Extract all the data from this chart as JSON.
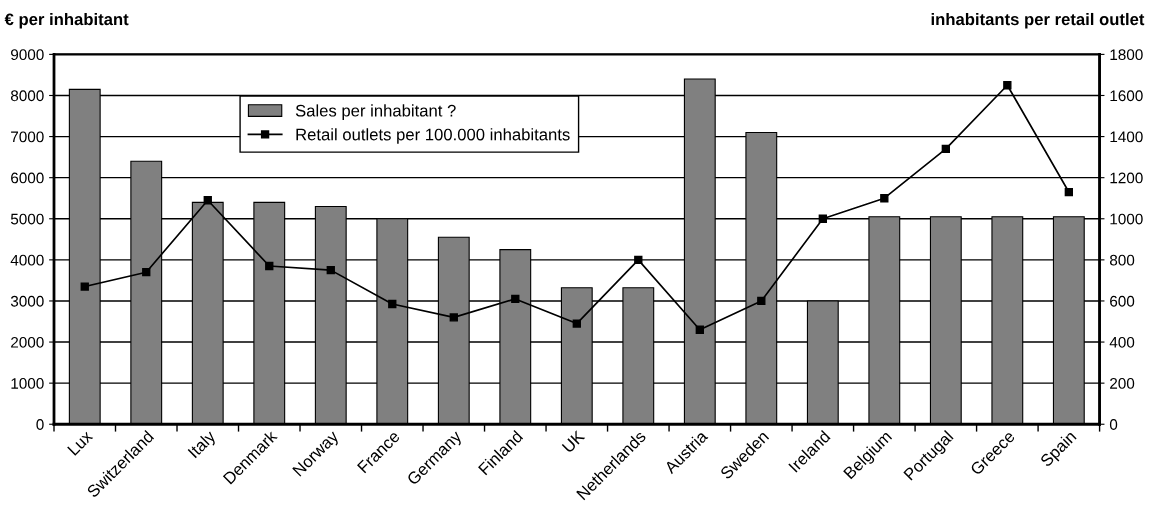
{
  "chart_data": {
    "type": "bar",
    "ylabel": "€ per inhabitant",
    "y2label": "inhabitants per retail outlet",
    "categories": [
      "Lux",
      "Switzerland",
      "Italy",
      "Denmark",
      "Norway",
      "France",
      "Germany",
      "Finland",
      "UK",
      "Netherlands",
      "Austria",
      "Sweden",
      "Ireland",
      "Belgium",
      "Portugal",
      "Greece",
      "Spain"
    ],
    "series": [
      {
        "name": "Sales per inhabitant ?",
        "color": "#808080",
        "values": [
          8150,
          6400,
          5400,
          5400,
          5300,
          5000,
          4550,
          4250,
          3320,
          3320,
          8400,
          7100,
          3000,
          5050,
          5050,
          5050,
          5050
        ]
      },
      {
        "name": "Retail outlets per 100.000 inhabitants",
        "type": "line",
        "axis": "y2",
        "color": "#000000",
        "marker": "square",
        "line_style": "solid",
        "values": [
          670,
          740,
          1090,
          770,
          750,
          585,
          520,
          610,
          490,
          800,
          460,
          600,
          1000,
          1100,
          1340,
          1650,
          1130
        ]
      }
    ],
    "ylim": [
      0,
      9000
    ],
    "yticks": [
      0,
      1000,
      2000,
      3000,
      4000,
      5000,
      6000,
      7000,
      8000,
      9000
    ],
    "y2lim": [
      0,
      1800
    ],
    "y2ticks": [
      0,
      200,
      400,
      600,
      800,
      1000,
      1200,
      1400,
      1600,
      1800
    ],
    "grid": "y",
    "legend": "top"
  }
}
